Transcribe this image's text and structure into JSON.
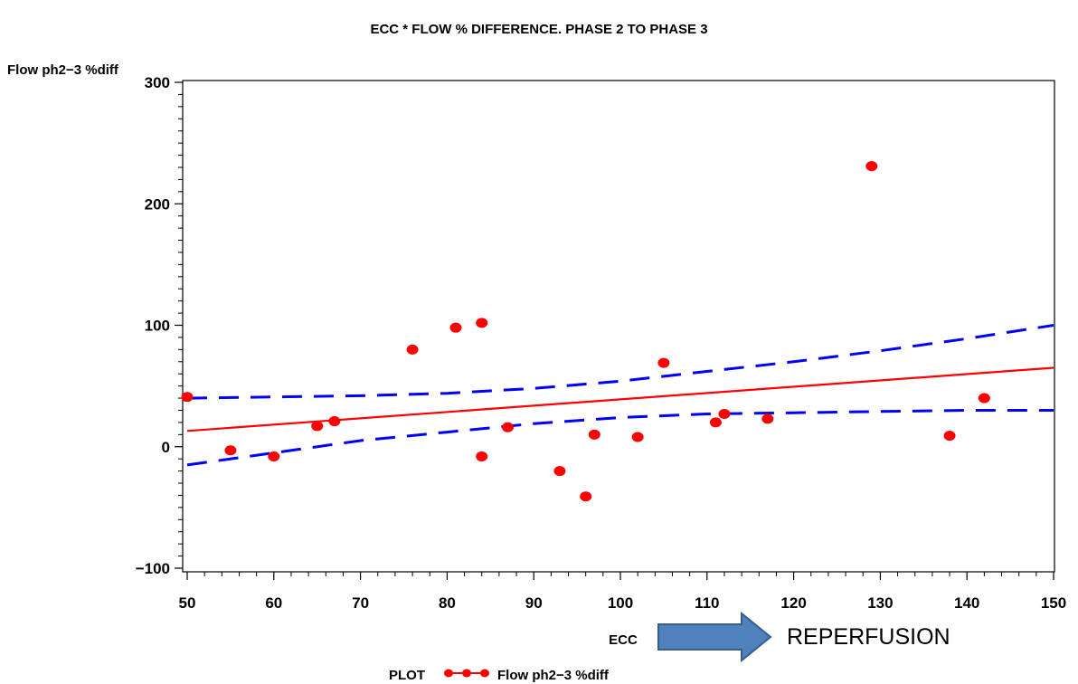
{
  "chart_data": {
    "type": "scatter",
    "title": "ECC * FLOW % DIFFERENCE. PHASE 2 TO PHASE 3",
    "xlabel": "ECC",
    "ylabel": "Flow ph2−3 %diff",
    "xlim": [
      50,
      150
    ],
    "ylim": [
      -100,
      300
    ],
    "x_ticks": [
      50,
      60,
      70,
      80,
      90,
      100,
      110,
      120,
      130,
      140,
      150
    ],
    "x_tick_labels": [
      "50",
      "60",
      "70",
      "80",
      "90",
      "100",
      "110",
      "120",
      "130",
      "140",
      "150"
    ],
    "y_ticks": [
      -100,
      0,
      100,
      200,
      300
    ],
    "y_tick_labels": [
      "−100",
      "0",
      "100",
      "200",
      "300"
    ],
    "grid": false,
    "legend_position": "bottom",
    "legend_title": "PLOT",
    "series": [
      {
        "name": "Flow ph2−3 %diff",
        "color": "#ff0000",
        "points": [
          {
            "x": 50,
            "y": 41
          },
          {
            "x": 55,
            "y": -3
          },
          {
            "x": 60,
            "y": -8
          },
          {
            "x": 65,
            "y": 17
          },
          {
            "x": 67,
            "y": 21
          },
          {
            "x": 76,
            "y": 80
          },
          {
            "x": 81,
            "y": 98
          },
          {
            "x": 84,
            "y": 102
          },
          {
            "x": 84,
            "y": -8
          },
          {
            "x": 87,
            "y": 16
          },
          {
            "x": 93,
            "y": -20
          },
          {
            "x": 96,
            "y": -41
          },
          {
            "x": 97,
            "y": 10
          },
          {
            "x": 102,
            "y": 8
          },
          {
            "x": 105,
            "y": 69
          },
          {
            "x": 111,
            "y": 20
          },
          {
            "x": 112,
            "y": 27
          },
          {
            "x": 117,
            "y": 23
          },
          {
            "x": 129,
            "y": 231
          },
          {
            "x": 138,
            "y": 9
          },
          {
            "x": 142,
            "y": 40
          }
        ]
      }
    ],
    "regression_line": {
      "color": "#ff0000",
      "points": [
        {
          "x": 50,
          "y": 13
        },
        {
          "x": 150,
          "y": 65
        }
      ]
    },
    "confidence_band": {
      "color": "#0000ff",
      "upper": [
        {
          "x": 50,
          "y": 40
        },
        {
          "x": 60,
          "y": 41
        },
        {
          "x": 70,
          "y": 42
        },
        {
          "x": 80,
          "y": 44
        },
        {
          "x": 90,
          "y": 48
        },
        {
          "x": 100,
          "y": 54
        },
        {
          "x": 110,
          "y": 62
        },
        {
          "x": 120,
          "y": 70
        },
        {
          "x": 130,
          "y": 79
        },
        {
          "x": 140,
          "y": 89
        },
        {
          "x": 150,
          "y": 100
        }
      ],
      "lower": [
        {
          "x": 50,
          "y": -15
        },
        {
          "x": 60,
          "y": -5
        },
        {
          "x": 70,
          "y": 5
        },
        {
          "x": 80,
          "y": 12
        },
        {
          "x": 90,
          "y": 19
        },
        {
          "x": 100,
          "y": 24
        },
        {
          "x": 110,
          "y": 27
        },
        {
          "x": 120,
          "y": 28
        },
        {
          "x": 130,
          "y": 29
        },
        {
          "x": 140,
          "y": 30
        },
        {
          "x": 150,
          "y": 30
        }
      ]
    },
    "annotation": {
      "text": "REPERFUSION",
      "arrow_color": "#4f81bd"
    }
  }
}
